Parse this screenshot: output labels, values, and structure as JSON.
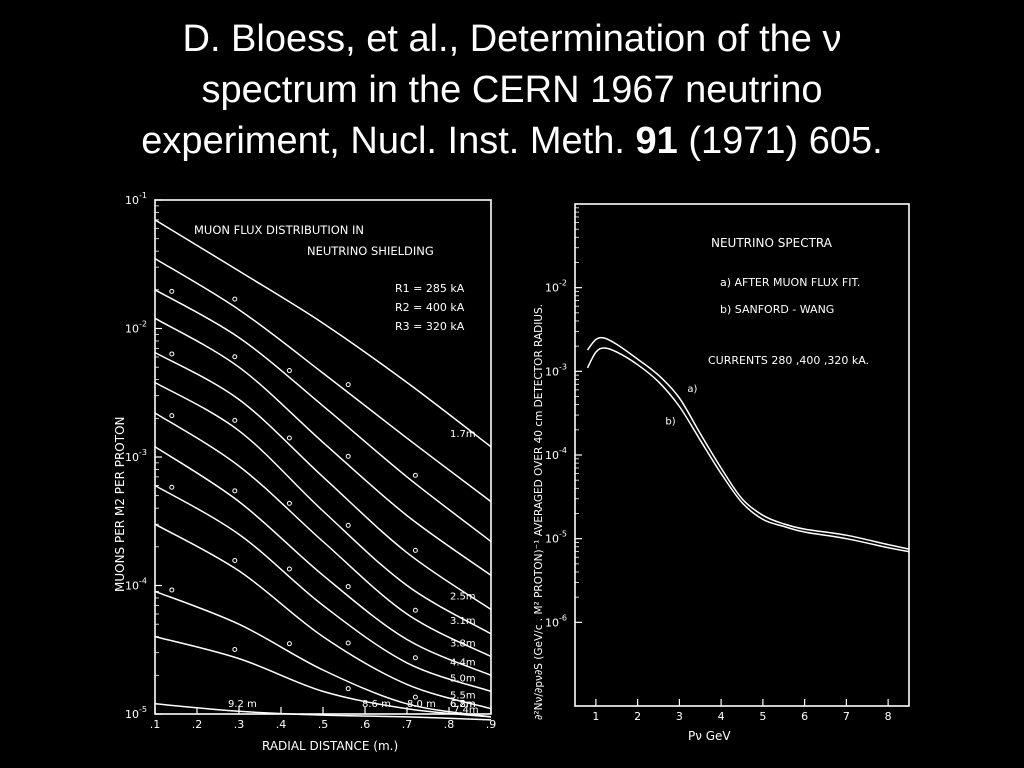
{
  "slide": {
    "title_line1": "D. Bloess, et al., Determination of the ν",
    "title_line2": "spectrum in the CERN 1967 neutrino",
    "title_line3_pre": "experiment, Nucl. Inst. Meth. ",
    "title_line3_bold": "91",
    "title_line3_post": " (1971) 605."
  },
  "chart_data": [
    {
      "type": "line",
      "title": "MUON FLUX DISTRIBUTION IN",
      "subtitle": "NEUTRINO SHIELDING",
      "notes": [
        "R1 = 285 kA",
        "R2 = 400 kA",
        "R3 = 320 kA"
      ],
      "xlabel": "RADIAL DISTANCE (m.)",
      "ylabel": "MUONS PER M2 PER PROTON",
      "xlim": [
        0.1,
        0.9
      ],
      "ylim": [
        1e-05,
        0.1
      ],
      "yscale": "log",
      "x_ticks": [
        ".1",
        ".2",
        ".3",
        ".4",
        ".5",
        ".6",
        ".7",
        ".8",
        ".9"
      ],
      "y_ticks": [
        {
          "v": 0.1,
          "t": "10",
          "e": "-1"
        },
        {
          "v": 0.01,
          "t": "10",
          "e": "-2"
        },
        {
          "v": 0.001,
          "t": "10",
          "e": "-3"
        },
        {
          "v": 0.0001,
          "t": "10",
          "e": "-4"
        },
        {
          "v": 1e-05,
          "t": "10",
          "e": "-5"
        }
      ],
      "x": [
        0.1,
        0.3,
        0.5,
        0.7,
        0.9
      ],
      "series": [
        {
          "name": "1.7m",
          "values": [
            0.07,
            0.028,
            0.011,
            0.0038,
            0.0012
          ]
        },
        {
          "name": "",
          "values": [
            0.035,
            0.014,
            0.0045,
            0.0014,
            0.00045
          ]
        },
        {
          "name": "",
          "values": [
            0.02,
            0.0085,
            0.0025,
            0.0007,
            0.00022
          ]
        },
        {
          "name": "",
          "values": [
            0.012,
            0.005,
            0.0013,
            0.00035,
            0.00012
          ]
        },
        {
          "name": "2.5m",
          "values": [
            0.0065,
            0.0028,
            0.0007,
            0.00018,
            6.5e-05
          ]
        },
        {
          "name": "3.1m",
          "values": [
            0.0038,
            0.0016,
            0.00038,
            0.0001,
            4.2e-05
          ]
        },
        {
          "name": "3.8m",
          "values": [
            0.0022,
            0.00085,
            0.00022,
            6e-05,
            2.8e-05
          ]
        },
        {
          "name": "4.4m",
          "values": [
            0.0012,
            0.00045,
            0.00012,
            3.8e-05,
            2e-05
          ]
        },
        {
          "name": "5.0m",
          "values": [
            0.0006,
            0.00025,
            7e-05,
            2.5e-05,
            1.5e-05
          ]
        },
        {
          "name": "5.5m",
          "values": [
            0.0003,
            0.00013,
            4e-05,
            1.7e-05,
            1.1e-05
          ]
        },
        {
          "name": "6.2m",
          "values": [
            9e-05,
            5e-05,
            2.2e-05,
            1.2e-05,
            9.5e-06
          ]
        },
        {
          "name": "6.8m",
          "values": [
            4e-05,
            2.7e-05,
            1.5e-05,
            1.1e-05,
            9.5e-06
          ]
        },
        {
          "name": "7.4m",
          "values": [
            1.2e-05,
            1.05e-05,
            9.8e-06,
            9.5e-06,
            9e-06
          ]
        }
      ],
      "extra_labels": [
        "9.2 m",
        "8.6 m",
        "8.0 m"
      ]
    },
    {
      "type": "line",
      "title": "NEUTRINO SPECTRA",
      "notes": [
        "a) AFTER MUON FLUX FIT.",
        "b) SANFORD - WANG",
        "CURRENTS 280 ,400 ,320 kA."
      ],
      "xlabel": "Pν GeV",
      "ylabel": "∂²Nν/∂pν∂S (GeV/c . M² PROTON)⁻¹ AVERAGED OVER 40 cm DETECTOR RADIUS.",
      "xlim": [
        0.5,
        8.5
      ],
      "ylim": [
        1e-07,
        0.1
      ],
      "yscale": "log",
      "x_ticks": [
        "1",
        "2",
        "3",
        "4",
        "5",
        "6",
        "7",
        "8"
      ],
      "y_ticks": [
        {
          "v": 0.01,
          "t": "10",
          "e": "-2"
        },
        {
          "v": 0.001,
          "t": "10",
          "e": "-3"
        },
        {
          "v": 0.0001,
          "t": "10",
          "e": "-4"
        },
        {
          "v": 1e-05,
          "t": "10",
          "e": "-5"
        },
        {
          "v": 1e-06,
          "t": "10",
          "e": "-6"
        }
      ],
      "x": [
        0.8,
        1.0,
        1.2,
        1.5,
        2.0,
        2.5,
        3.0,
        3.5,
        4.0,
        4.5,
        5.0,
        5.5,
        6.0,
        7.0,
        8.0,
        8.5
      ],
      "series": [
        {
          "name": "a)",
          "values": [
            0.0018,
            0.0024,
            0.0025,
            0.0021,
            0.0014,
            0.0009,
            0.00048,
            0.00018,
            7e-05,
            3e-05,
            1.9e-05,
            1.5e-05,
            1.3e-05,
            1.1e-05,
            8.5e-06,
            7.5e-06
          ]
        },
        {
          "name": "b)",
          "values": [
            0.0011,
            0.0017,
            0.0019,
            0.0017,
            0.0012,
            0.00075,
            0.00038,
            0.00015,
            6e-05,
            2.7e-05,
            1.7e-05,
            1.4e-05,
            1.2e-05,
            1e-05,
            7.8e-06,
            7e-06
          ]
        }
      ]
    }
  ]
}
